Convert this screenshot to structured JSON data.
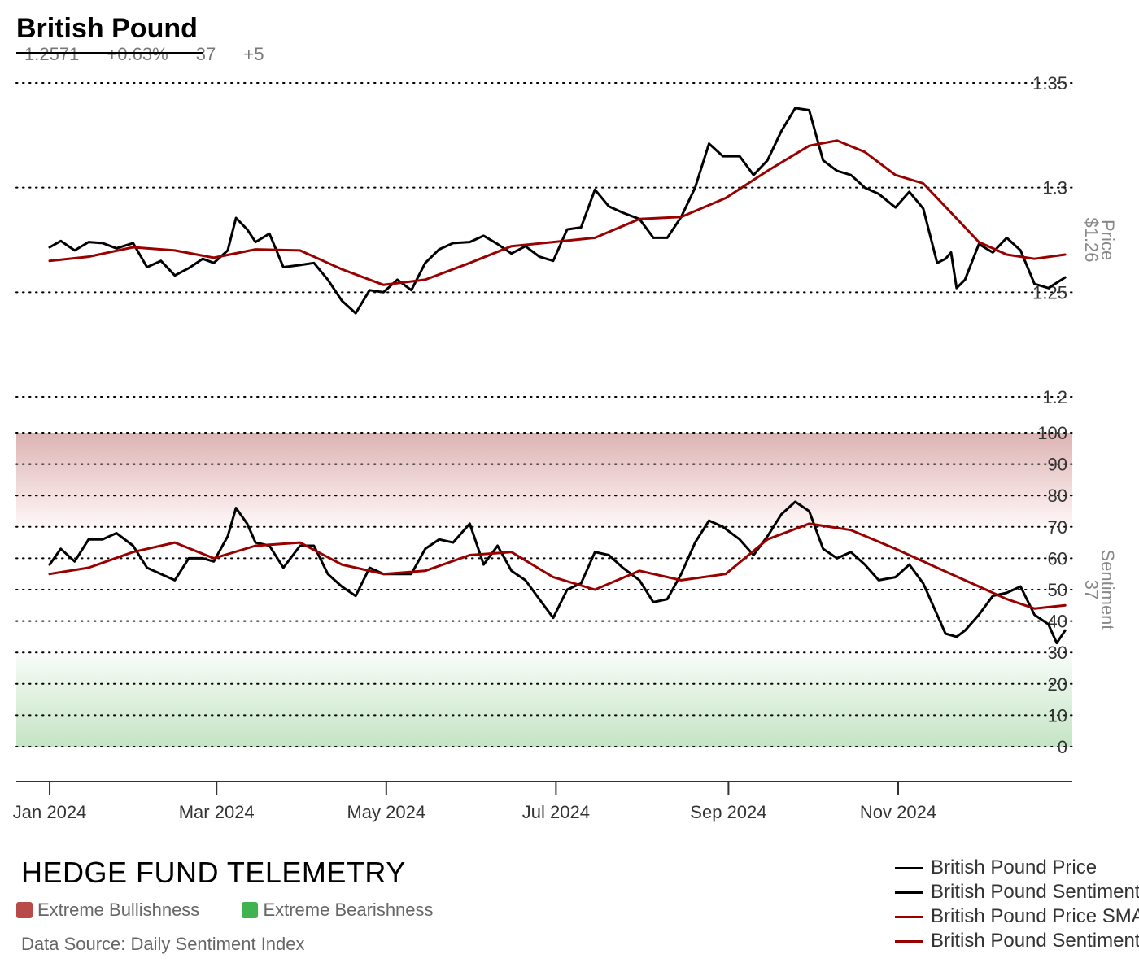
{
  "header": {
    "title": "British Pound",
    "price": "1.2571",
    "change": "+0.63%",
    "sentiment": "37",
    "sentiment_change": "+5"
  },
  "footer": {
    "brand": "HEDGE FUND TELEMETRY",
    "bull_label": "Extreme Bullishness",
    "bear_label": "Extreme Bearishness",
    "source": "Data Source: Daily Sentiment Index"
  },
  "colors": {
    "price_line": "#000000",
    "sma_line": "#990000",
    "bull_zone": "#b94a4a",
    "bear_zone": "#3fb34f"
  },
  "legend": [
    {
      "label": "British Pound Price",
      "color": "#000000"
    },
    {
      "label": "British Pound Sentiment",
      "color": "#000000"
    },
    {
      "label": "British Pound Price SMA",
      "color": "#990000"
    },
    {
      "label": "British Pound Sentiment SMA",
      "color": "#990000"
    }
  ],
  "chart_data": [
    {
      "type": "line",
      "panel": "price",
      "ylabel": "Price",
      "current_value_label": "$1.26",
      "ylim": [
        1.2,
        1.35
      ],
      "yticks": [
        1.2,
        1.25,
        1.3,
        1.35
      ],
      "ytick_labels": [
        "1.2",
        "1.25",
        "1.3",
        "1.35"
      ],
      "grid": true,
      "series": [
        {
          "name": "British Pound Price",
          "points": [
            [
              "2024-01-01",
              1.2715
            ],
            [
              "2024-01-05",
              1.2745
            ],
            [
              "2024-01-10",
              1.27
            ],
            [
              "2024-01-15",
              1.274
            ],
            [
              "2024-01-20",
              1.2735
            ],
            [
              "2024-01-25",
              1.271
            ],
            [
              "2024-01-31",
              1.2735
            ],
            [
              "2024-02-05",
              1.262
            ],
            [
              "2024-02-10",
              1.265
            ],
            [
              "2024-02-15",
              1.258
            ],
            [
              "2024-02-20",
              1.2615
            ],
            [
              "2024-02-25",
              1.266
            ],
            [
              "2024-02-29",
              1.264
            ],
            [
              "2024-03-05",
              1.27
            ],
            [
              "2024-03-08",
              1.2855
            ],
            [
              "2024-03-12",
              1.28
            ],
            [
              "2024-03-15",
              1.274
            ],
            [
              "2024-03-20",
              1.278
            ],
            [
              "2024-03-25",
              1.262
            ],
            [
              "2024-03-31",
              1.263
            ],
            [
              "2024-04-05",
              1.264
            ],
            [
              "2024-04-10",
              1.256
            ],
            [
              "2024-04-15",
              1.246
            ],
            [
              "2024-04-20",
              1.24
            ],
            [
              "2024-04-25",
              1.251
            ],
            [
              "2024-04-30",
              1.25
            ],
            [
              "2024-05-05",
              1.256
            ],
            [
              "2024-05-10",
              1.251
            ],
            [
              "2024-05-15",
              1.264
            ],
            [
              "2024-05-20",
              1.2705
            ],
            [
              "2024-05-25",
              1.2735
            ],
            [
              "2024-05-31",
              1.274
            ],
            [
              "2024-06-05",
              1.277
            ],
            [
              "2024-06-10",
              1.273
            ],
            [
              "2024-06-15",
              1.2685
            ],
            [
              "2024-06-20",
              1.272
            ],
            [
              "2024-06-25",
              1.267
            ],
            [
              "2024-06-30",
              1.265
            ],
            [
              "2024-07-05",
              1.28
            ],
            [
              "2024-07-10",
              1.281
            ],
            [
              "2024-07-15",
              1.299
            ],
            [
              "2024-07-20",
              1.291
            ],
            [
              "2024-07-25",
              1.288
            ],
            [
              "2024-07-31",
              1.285
            ],
            [
              "2024-08-05",
              1.276
            ],
            [
              "2024-08-10",
              1.276
            ],
            [
              "2024-08-15",
              1.286
            ],
            [
              "2024-08-20",
              1.3
            ],
            [
              "2024-08-25",
              1.321
            ],
            [
              "2024-08-30",
              1.315
            ],
            [
              "2024-09-05",
              1.315
            ],
            [
              "2024-09-10",
              1.306
            ],
            [
              "2024-09-15",
              1.313
            ],
            [
              "2024-09-20",
              1.327
            ],
            [
              "2024-09-25",
              1.338
            ],
            [
              "2024-09-30",
              1.337
            ],
            [
              "2024-10-05",
              1.313
            ],
            [
              "2024-10-10",
              1.308
            ],
            [
              "2024-10-15",
              1.306
            ],
            [
              "2024-10-20",
              1.3
            ],
            [
              "2024-10-25",
              1.297
            ],
            [
              "2024-10-31",
              1.2905
            ],
            [
              "2024-11-05",
              1.298
            ],
            [
              "2024-11-10",
              1.29
            ],
            [
              "2024-11-15",
              1.264
            ],
            [
              "2024-11-18",
              1.266
            ],
            [
              "2024-11-20",
              1.269
            ],
            [
              "2024-11-22",
              1.252
            ],
            [
              "2024-11-25",
              1.256
            ],
            [
              "2024-11-30",
              1.273
            ],
            [
              "2024-12-05",
              1.269
            ],
            [
              "2024-12-10",
              1.276
            ],
            [
              "2024-12-15",
              1.27
            ],
            [
              "2024-12-20",
              1.254
            ],
            [
              "2024-12-25",
              1.252
            ],
            [
              "2024-12-31",
              1.2571
            ]
          ]
        },
        {
          "name": "British Pound Price SMA",
          "points": [
            [
              "2024-01-01",
              1.265
            ],
            [
              "2024-01-15",
              1.267
            ],
            [
              "2024-01-31",
              1.2715
            ],
            [
              "2024-02-15",
              1.27
            ],
            [
              "2024-02-29",
              1.2665
            ],
            [
              "2024-03-15",
              1.2705
            ],
            [
              "2024-03-31",
              1.27
            ],
            [
              "2024-04-15",
              1.261
            ],
            [
              "2024-04-30",
              1.2535
            ],
            [
              "2024-05-15",
              1.256
            ],
            [
              "2024-05-31",
              1.264
            ],
            [
              "2024-06-15",
              1.272
            ],
            [
              "2024-06-30",
              1.274
            ],
            [
              "2024-07-15",
              1.276
            ],
            [
              "2024-07-31",
              1.285
            ],
            [
              "2024-08-15",
              1.286
            ],
            [
              "2024-08-31",
              1.295
            ],
            [
              "2024-09-15",
              1.308
            ],
            [
              "2024-09-30",
              1.32
            ],
            [
              "2024-10-10",
              1.3225
            ],
            [
              "2024-10-20",
              1.317
            ],
            [
              "2024-10-31",
              1.306
            ],
            [
              "2024-11-10",
              1.302
            ],
            [
              "2024-11-20",
              1.288
            ],
            [
              "2024-11-30",
              1.274
            ],
            [
              "2024-12-10",
              1.268
            ],
            [
              "2024-12-20",
              1.266
            ],
            [
              "2024-12-31",
              1.268
            ]
          ]
        }
      ]
    },
    {
      "type": "line",
      "panel": "sentiment",
      "ylabel": "Sentiment",
      "current_value_label": "37",
      "ylim": [
        0,
        100
      ],
      "yticks": [
        0,
        10,
        20,
        30,
        40,
        50,
        60,
        70,
        80,
        90,
        100
      ],
      "ytick_labels": [
        "0",
        "10",
        "20",
        "30",
        "40",
        "50",
        "60",
        "70",
        "80",
        "90",
        "100"
      ],
      "bull_zone": [
        70,
        100
      ],
      "bear_zone": [
        0,
        30
      ],
      "grid": true,
      "series": [
        {
          "name": "British Pound Sentiment",
          "points": [
            [
              "2024-01-01",
              58
            ],
            [
              "2024-01-05",
              63
            ],
            [
              "2024-01-10",
              59
            ],
            [
              "2024-01-15",
              66
            ],
            [
              "2024-01-20",
              66
            ],
            [
              "2024-01-25",
              68
            ],
            [
              "2024-01-31",
              64
            ],
            [
              "2024-02-05",
              57
            ],
            [
              "2024-02-10",
              55
            ],
            [
              "2024-02-15",
              53
            ],
            [
              "2024-02-20",
              60
            ],
            [
              "2024-02-25",
              60
            ],
            [
              "2024-02-29",
              59
            ],
            [
              "2024-03-05",
              67
            ],
            [
              "2024-03-08",
              76
            ],
            [
              "2024-03-12",
              71
            ],
            [
              "2024-03-15",
              65
            ],
            [
              "2024-03-20",
              64
            ],
            [
              "2024-03-25",
              57
            ],
            [
              "2024-03-31",
              64
            ],
            [
              "2024-04-05",
              64
            ],
            [
              "2024-04-10",
              55
            ],
            [
              "2024-04-15",
              51
            ],
            [
              "2024-04-20",
              48
            ],
            [
              "2024-04-25",
              57
            ],
            [
              "2024-04-30",
              55
            ],
            [
              "2024-05-05",
              55
            ],
            [
              "2024-05-10",
              55
            ],
            [
              "2024-05-15",
              63
            ],
            [
              "2024-05-20",
              66
            ],
            [
              "2024-05-25",
              65
            ],
            [
              "2024-05-31",
              71
            ],
            [
              "2024-06-05",
              58
            ],
            [
              "2024-06-10",
              64
            ],
            [
              "2024-06-15",
              56
            ],
            [
              "2024-06-20",
              53
            ],
            [
              "2024-06-25",
              47
            ],
            [
              "2024-06-30",
              41
            ],
            [
              "2024-07-05",
              50
            ],
            [
              "2024-07-10",
              52
            ],
            [
              "2024-07-15",
              62
            ],
            [
              "2024-07-20",
              61
            ],
            [
              "2024-07-25",
              57
            ],
            [
              "2024-07-31",
              53
            ],
            [
              "2024-08-05",
              46
            ],
            [
              "2024-08-10",
              47
            ],
            [
              "2024-08-15",
              55
            ],
            [
              "2024-08-20",
              65
            ],
            [
              "2024-08-25",
              72
            ],
            [
              "2024-08-30",
              70
            ],
            [
              "2024-09-05",
              66
            ],
            [
              "2024-09-10",
              61
            ],
            [
              "2024-09-15",
              67
            ],
            [
              "2024-09-20",
              74
            ],
            [
              "2024-09-25",
              78
            ],
            [
              "2024-09-30",
              75
            ],
            [
              "2024-10-05",
              63
            ],
            [
              "2024-10-10",
              60
            ],
            [
              "2024-10-15",
              62
            ],
            [
              "2024-10-20",
              58
            ],
            [
              "2024-10-25",
              53
            ],
            [
              "2024-10-31",
              54
            ],
            [
              "2024-11-05",
              58
            ],
            [
              "2024-11-10",
              52
            ],
            [
              "2024-11-15",
              42
            ],
            [
              "2024-11-18",
              36
            ],
            [
              "2024-11-22",
              35
            ],
            [
              "2024-11-25",
              37
            ],
            [
              "2024-11-30",
              42
            ],
            [
              "2024-12-05",
              48
            ],
            [
              "2024-12-10",
              49
            ],
            [
              "2024-12-15",
              51
            ],
            [
              "2024-12-20",
              42
            ],
            [
              "2024-12-25",
              39
            ],
            [
              "2024-12-28",
              33
            ],
            [
              "2024-12-31",
              37
            ]
          ]
        },
        {
          "name": "British Pound Sentiment SMA",
          "points": [
            [
              "2024-01-01",
              55
            ],
            [
              "2024-01-15",
              57
            ],
            [
              "2024-01-31",
              62
            ],
            [
              "2024-02-15",
              65
            ],
            [
              "2024-02-29",
              60
            ],
            [
              "2024-03-15",
              64
            ],
            [
              "2024-03-31",
              65
            ],
            [
              "2024-04-15",
              58
            ],
            [
              "2024-04-30",
              55
            ],
            [
              "2024-05-15",
              56
            ],
            [
              "2024-05-31",
              61
            ],
            [
              "2024-06-15",
              62
            ],
            [
              "2024-06-30",
              54
            ],
            [
              "2024-07-15",
              50
            ],
            [
              "2024-07-31",
              56
            ],
            [
              "2024-08-15",
              53
            ],
            [
              "2024-08-31",
              55
            ],
            [
              "2024-09-15",
              66
            ],
            [
              "2024-09-30",
              71
            ],
            [
              "2024-10-15",
              69
            ],
            [
              "2024-10-31",
              63
            ],
            [
              "2024-11-10",
              59
            ],
            [
              "2024-11-20",
              55
            ],
            [
              "2024-11-30",
              51
            ],
            [
              "2024-12-10",
              47
            ],
            [
              "2024-12-20",
              44
            ],
            [
              "2024-12-31",
              45
            ]
          ]
        }
      ]
    }
  ],
  "x_axis": {
    "range": [
      "2023-12-20",
      "2025-01-02"
    ],
    "ticks": [
      {
        "date": "2024-01-01",
        "label": "Jan 2024"
      },
      {
        "date": "2024-03-01",
        "label": "Mar 2024"
      },
      {
        "date": "2024-05-01",
        "label": "May 2024"
      },
      {
        "date": "2024-07-01",
        "label": "Jul 2024"
      },
      {
        "date": "2024-09-01",
        "label": "Sep 2024"
      },
      {
        "date": "2024-11-01",
        "label": "Nov 2024"
      }
    ]
  }
}
